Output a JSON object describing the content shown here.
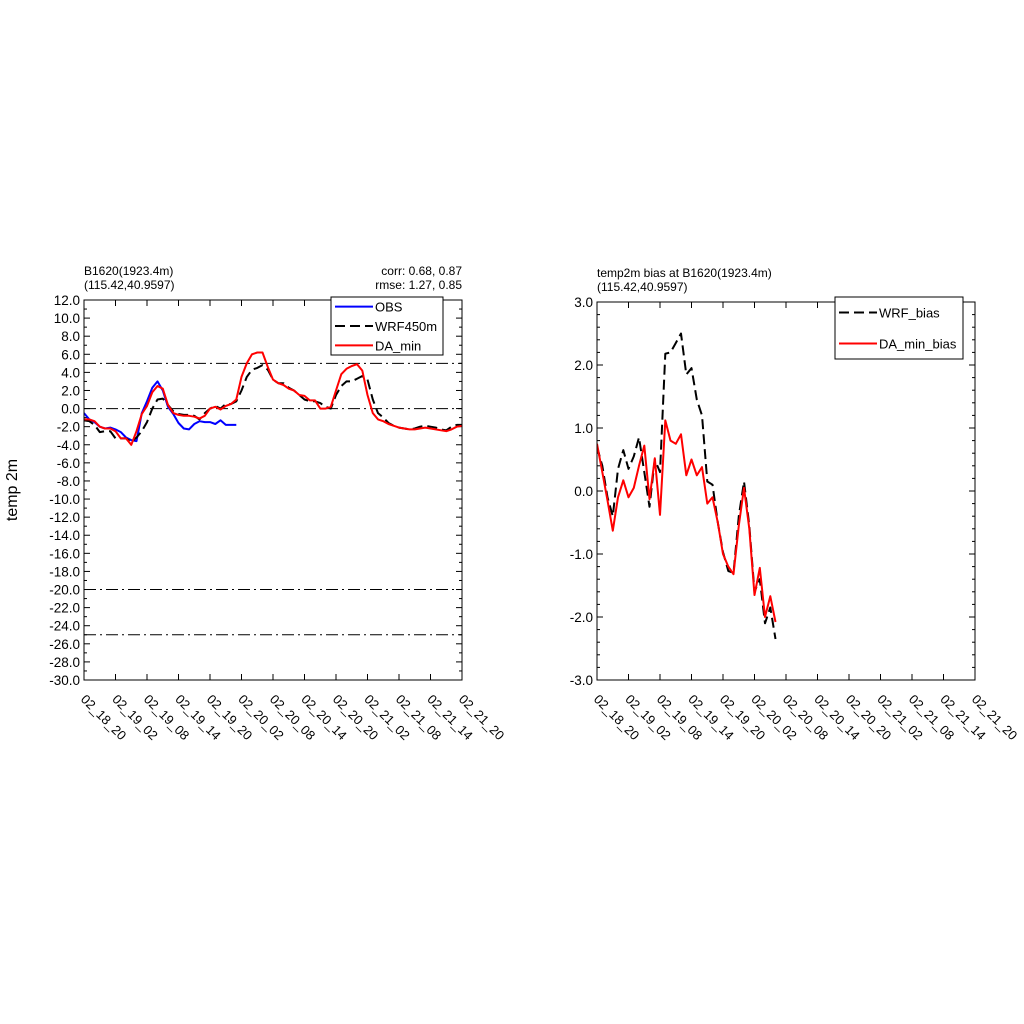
{
  "chart_data": [
    {
      "type": "line",
      "title": "B1620(1923.4m)",
      "subtitle": "(115.42,40.9597)",
      "stats": {
        "corr": "corr:  0.68, 0.87",
        "rmse": "rmse: 1.27, 0.85"
      },
      "ylabel": "temp 2m",
      "xlabel": "",
      "ylim": [
        -30,
        12
      ],
      "yticks": [
        "12.0",
        "10.0",
        "8.0",
        "6.0",
        "4.0",
        "2.0",
        "0.0",
        "-2.0",
        "-4.0",
        "-6.0",
        "-8.0",
        "-10.0",
        "-12.0",
        "-14.0",
        "-16.0",
        "-18.0",
        "-20.0",
        "-22.0",
        "-24.0",
        "-26.0",
        "-28.0",
        "-30.0"
      ],
      "xlim": [
        0,
        72
      ],
      "xticks": [
        "02_18_20",
        "02_19_02",
        "02_19_08",
        "02_19_14",
        "02_19_20",
        "02_20_02",
        "02_20_08",
        "02_20_14",
        "02_20_20",
        "02_21_02",
        "02_21_08",
        "02_21_14",
        "02_21_20"
      ],
      "reference_lines": [
        5,
        0,
        -20,
        -25
      ],
      "legend": {
        "position": "top-right",
        "entries": [
          "OBS",
          "WRF450m",
          "DA_min"
        ]
      },
      "series": [
        {
          "name": "OBS",
          "color": "#0000ff",
          "dash": "solid",
          "x": [
            0,
            1,
            2,
            3,
            4,
            5,
            6,
            7,
            8,
            9,
            10,
            11,
            12,
            13,
            14,
            15,
            16,
            17,
            18,
            19,
            20,
            21,
            22,
            23,
            24,
            25,
            26,
            27,
            28,
            29,
            30,
            31,
            32,
            33,
            34,
            35
          ],
          "y": [
            -0.5,
            -1.2,
            -1.5,
            -2.0,
            -2.2,
            -2.1,
            -2.3,
            -2.6,
            -3.2,
            -3.5,
            -3.6,
            -0.5,
            0.8,
            2.3,
            3.0,
            2.0,
            0.2,
            -0.6,
            -1.6,
            -2.2,
            -2.3,
            -1.7,
            -1.4,
            -1.5,
            -1.5,
            -1.7,
            -1.3,
            -1.8,
            -1.8,
            -1.8,
            null,
            null,
            null,
            null,
            null,
            null
          ]
        },
        {
          "name": "WRF450m",
          "color": "#000000",
          "dash": "dashed",
          "x": [
            0,
            1,
            2,
            3,
            4,
            5,
            6,
            7,
            8,
            9,
            10,
            11,
            12,
            13,
            14,
            15,
            16,
            17,
            18,
            19,
            20,
            21,
            22,
            23,
            24,
            25,
            26,
            27,
            28,
            29,
            30,
            31,
            32,
            33,
            34,
            35,
            36,
            37,
            38,
            39,
            40,
            41,
            42,
            43,
            44,
            45,
            46,
            47,
            48,
            49,
            50,
            51,
            52,
            53,
            54,
            55,
            56,
            57,
            58,
            59,
            60,
            61,
            62,
            63,
            64,
            65,
            66,
            67,
            68,
            69,
            70,
            71,
            72
          ],
          "y": [
            -1.3,
            -1.4,
            -1.8,
            -2.6,
            -2.5,
            -2.5,
            -3.3,
            -3.3,
            -3.3,
            -3.7,
            -3.2,
            -2.5,
            -1.5,
            0.0,
            1.0,
            1.1,
            0.4,
            -0.3,
            -0.6,
            -0.7,
            -0.7,
            -0.8,
            -1.2,
            -0.5,
            0.0,
            0.3,
            0.0,
            0.5,
            0.5,
            0.8,
            2.0,
            3.5,
            4.3,
            4.5,
            4.8,
            4.3,
            3.2,
            2.8,
            2.8,
            2.3,
            2.0,
            1.5,
            1.0,
            0.8,
            0.8,
            0.6,
            0.2,
            0.0,
            1.5,
            2.5,
            3.0,
            3.0,
            3.3,
            3.6,
            3.2,
            1.0,
            -0.5,
            -1.0,
            -1.6,
            -1.9,
            -2.1,
            -2.2,
            -2.3,
            -2.2,
            -2.0,
            -1.9,
            -2.0,
            -2.1,
            -2.3,
            -2.4,
            -2.0,
            -1.8,
            -1.8
          ]
        },
        {
          "name": "DA_min",
          "color": "#ff0000",
          "dash": "solid",
          "x": [
            0,
            1,
            2,
            3,
            4,
            5,
            6,
            7,
            8,
            9,
            10,
            11,
            12,
            13,
            14,
            15,
            16,
            17,
            18,
            19,
            20,
            21,
            22,
            23,
            24,
            25,
            26,
            27,
            28,
            29,
            30,
            31,
            32,
            33,
            34,
            35,
            36,
            37,
            38,
            39,
            40,
            41,
            42,
            43,
            44,
            45,
            46,
            47,
            48,
            49,
            50,
            51,
            52,
            53,
            54,
            55,
            56,
            57,
            58,
            59,
            60,
            61,
            62,
            63,
            64,
            65,
            66,
            67,
            68,
            69,
            70,
            71,
            72
          ],
          "y": [
            -1.2,
            -1.2,
            -1.4,
            -2.0,
            -2.2,
            -2.2,
            -2.5,
            -3.3,
            -3.3,
            -4.0,
            -2.5,
            -0.6,
            0.3,
            1.8,
            2.5,
            2.2,
            0.4,
            -0.5,
            -0.7,
            -0.8,
            -0.8,
            -0.9,
            -1.1,
            -0.8,
            0.0,
            0.2,
            -0.1,
            0.3,
            0.5,
            1.0,
            3.5,
            5.0,
            6.0,
            6.2,
            6.2,
            4.6,
            3.2,
            2.8,
            2.6,
            2.2,
            2.0,
            1.5,
            1.4,
            0.9,
            0.9,
            0.0,
            0.0,
            0.2,
            2.0,
            3.8,
            4.4,
            4.7,
            4.9,
            4.2,
            1.5,
            -0.5,
            -1.2,
            -1.4,
            -1.7,
            -1.9,
            -2.1,
            -2.2,
            -2.3,
            -2.3,
            -2.2,
            -2.1,
            -2.2,
            -2.3,
            -2.4,
            -2.5,
            -2.3,
            -2.0,
            -1.9
          ]
        }
      ]
    },
    {
      "type": "line",
      "title": "temp2m bias at B1620(1923.4m)",
      "subtitle": "(115.42,40.9597)",
      "ylabel": "",
      "xlabel": "",
      "ylim": [
        -3,
        3
      ],
      "yticks": [
        "3.0",
        "2.0",
        "1.0",
        "0.0",
        "-1.0",
        "-2.0",
        "-3.0"
      ],
      "xlim": [
        0,
        72
      ],
      "xticks": [
        "02_18_20",
        "02_19_02",
        "02_19_08",
        "02_19_14",
        "02_19_20",
        "02_20_02",
        "02_20_08",
        "02_20_14",
        "02_20_20",
        "02_21_02",
        "02_21_08",
        "02_21_14",
        "02_21_20"
      ],
      "legend": {
        "position": "top-right",
        "entries": [
          "WRF_bias",
          "DA_min_bias"
        ]
      },
      "series": [
        {
          "name": "WRF_bias",
          "color": "#000000",
          "dash": "dashed",
          "x": [
            0,
            1,
            2,
            3,
            4,
            5,
            6,
            7,
            8,
            9,
            10,
            11,
            12,
            13,
            14,
            15,
            16,
            17,
            18,
            19,
            20,
            21,
            22,
            23,
            24,
            25,
            26,
            27,
            28,
            29,
            30,
            31,
            32,
            33,
            34,
            35
          ],
          "y": [
            0.7,
            0.4,
            -0.1,
            -0.4,
            0.35,
            0.65,
            0.35,
            0.55,
            0.85,
            0.3,
            -0.25,
            0.5,
            0.3,
            2.18,
            2.2,
            2.35,
            2.5,
            1.85,
            1.95,
            1.45,
            1.2,
            0.15,
            0.1,
            -0.5,
            -0.97,
            -1.27,
            -1.3,
            -0.4,
            0.15,
            -0.55,
            -1.6,
            -1.4,
            -2.1,
            -1.85,
            -2.35,
            null
          ]
        },
        {
          "name": "DA_min_bias",
          "color": "#ff0000",
          "dash": "solid",
          "x": [
            0,
            1,
            2,
            3,
            4,
            5,
            6,
            7,
            8,
            9,
            10,
            11,
            12,
            13,
            14,
            15,
            16,
            17,
            18,
            19,
            20,
            21,
            22,
            23,
            24,
            25,
            26,
            27,
            28,
            29,
            30,
            31,
            32,
            33,
            34,
            35
          ],
          "y": [
            0.75,
            0.3,
            -0.15,
            -0.63,
            -0.1,
            0.17,
            -0.1,
            0.05,
            0.4,
            0.72,
            -0.13,
            0.52,
            -0.38,
            1.12,
            0.8,
            0.75,
            0.9,
            0.25,
            0.5,
            0.25,
            0.38,
            -0.2,
            -0.1,
            -0.5,
            -1.0,
            -1.2,
            -1.32,
            -0.55,
            0.05,
            -0.6,
            -1.65,
            -1.22,
            -2.0,
            -1.67,
            -2.08,
            null
          ]
        }
      ]
    }
  ]
}
